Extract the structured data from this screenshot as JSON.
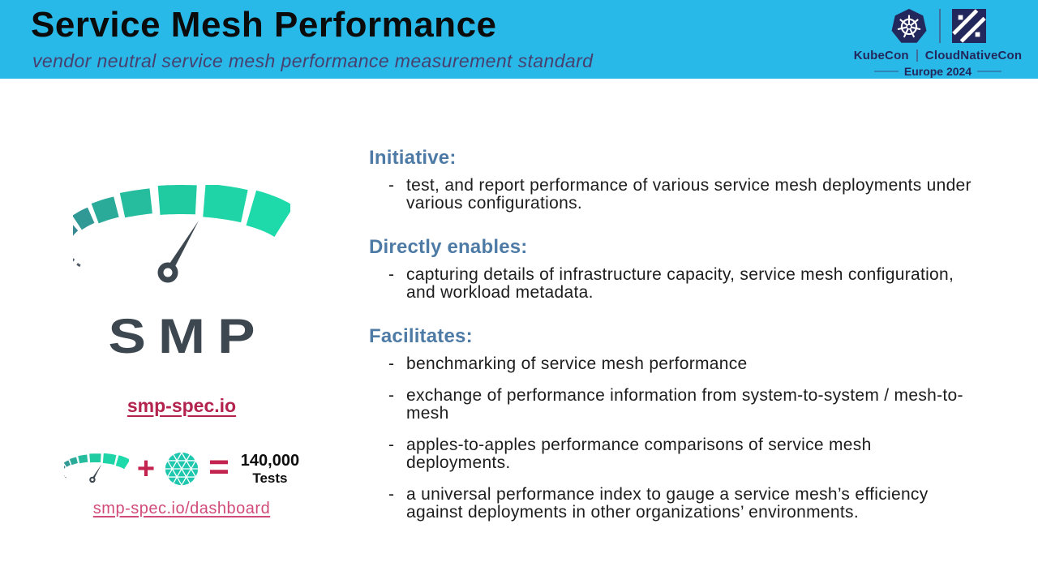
{
  "header": {
    "title": "Service Mesh Performance",
    "subtitle": "vendor neutral service mesh performance measurement standard",
    "event": {
      "left": "KubeCon",
      "right": "CloudNativeCon",
      "edition": "Europe 2024"
    }
  },
  "left_panel": {
    "logo_text": "SMP",
    "primary_link": "smp-spec.io",
    "equation": {
      "plus": "+",
      "equals": "=",
      "result_value": "140,000",
      "result_label": "Tests"
    },
    "dashboard_link": "smp-spec.io/dashboard"
  },
  "bullet_marker": "-",
  "sections": [
    {
      "heading": "Initiative:",
      "bullets": [
        "test, and report performance of various service mesh deployments under various configurations."
      ]
    },
    {
      "heading": "Directly enables:",
      "bullets": [
        "capturing details of infrastructure capacity, service mesh configuration, and workload metadata."
      ]
    },
    {
      "heading": "Facilitates:",
      "bullets": [
        "benchmarking of service mesh performance",
        "exchange of performance information from system-to-system / mesh-to-mesh",
        "apples-to-apples performance comparisons of service mesh deployments.",
        "a universal performance index to gauge a service mesh’s efficiency against deployments in other organizations’ environments."
      ]
    }
  ],
  "colors": {
    "header_bg": "#29b9e8",
    "title_text": "#0b0b0b",
    "subtitle_text": "#47406f",
    "heading_blue": "#4e7ba6",
    "body_text": "#1d1d1d",
    "link_bold": "#b3234e",
    "link_light": "#d14b7a",
    "accent_pink": "#c2244f",
    "navy": "#23285c",
    "mesh_teal": "#1fc7ae",
    "needle": "#3d4750"
  },
  "gauge_palette": [
    "#525c66",
    "#4f5f6e",
    "#4b667b",
    "#466f88",
    "#3f7a91",
    "#388894",
    "#309996",
    "#2aab9a",
    "#25bd9e",
    "#21cba2",
    "#1fd4a6",
    "#1ed9a9"
  ]
}
